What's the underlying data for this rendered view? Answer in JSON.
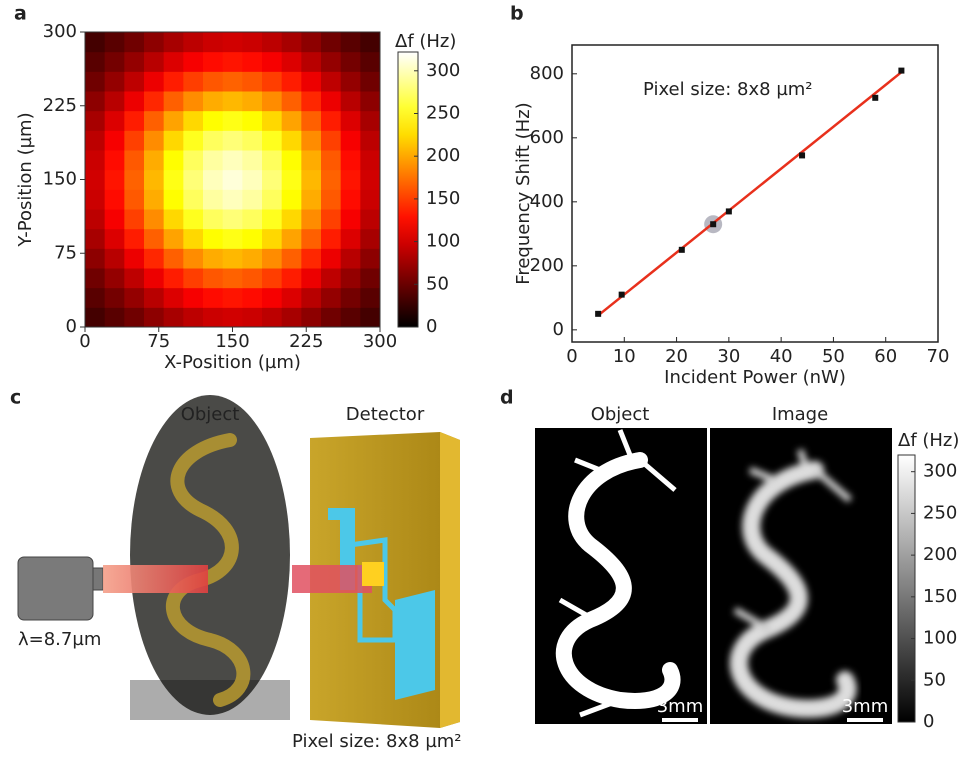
{
  "chart_data": [
    {
      "type": "heatmap",
      "xlabel": "X-Position (µm)",
      "ylabel": "Y-Position (µm)",
      "xlim": [
        0,
        300
      ],
      "ylim": [
        0,
        300
      ],
      "xticks": [
        0,
        75,
        150,
        225,
        300
      ],
      "yticks": [
        0,
        75,
        150,
        225,
        300
      ],
      "colormap": "hot",
      "z": [
        [
          32,
          42,
          53,
          67,
          79,
          89,
          96,
          99,
          96,
          89,
          79,
          67,
          53,
          42,
          32
        ],
        [
          42,
          55,
          70,
          87,
          104,
          117,
          126,
          130,
          126,
          117,
          104,
          87,
          70,
          55,
          42
        ],
        [
          53,
          70,
          90,
          112,
          134,
          150,
          162,
          167,
          162,
          150,
          134,
          112,
          90,
          70,
          53
        ],
        [
          67,
          87,
          112,
          139,
          166,
          187,
          202,
          208,
          202,
          187,
          166,
          139,
          112,
          87,
          67
        ],
        [
          79,
          104,
          134,
          166,
          198,
          223,
          241,
          248,
          241,
          223,
          198,
          166,
          134,
          104,
          79
        ],
        [
          89,
          117,
          151,
          187,
          223,
          251,
          271,
          279,
          271,
          251,
          223,
          187,
          151,
          117,
          89
        ],
        [
          96,
          126,
          163,
          202,
          241,
          271,
          292,
          301,
          292,
          271,
          241,
          202,
          163,
          126,
          96
        ],
        [
          99,
          130,
          167,
          208,
          248,
          279,
          301,
          310,
          301,
          279,
          248,
          208,
          167,
          130,
          99
        ],
        [
          96,
          126,
          163,
          202,
          241,
          271,
          292,
          301,
          292,
          271,
          241,
          202,
          163,
          126,
          96
        ],
        [
          89,
          117,
          151,
          187,
          223,
          251,
          271,
          279,
          271,
          251,
          223,
          187,
          151,
          117,
          89
        ],
        [
          79,
          104,
          134,
          166,
          198,
          223,
          241,
          248,
          241,
          223,
          198,
          166,
          134,
          104,
          79
        ],
        [
          67,
          87,
          112,
          139,
          166,
          187,
          202,
          208,
          202,
          187,
          166,
          139,
          112,
          87,
          67
        ],
        [
          53,
          70,
          90,
          112,
          134,
          150,
          162,
          167,
          162,
          150,
          134,
          112,
          90,
          70,
          53
        ],
        [
          42,
          55,
          70,
          87,
          104,
          117,
          126,
          130,
          126,
          117,
          104,
          87,
          70,
          55,
          42
        ],
        [
          32,
          42,
          53,
          67,
          79,
          89,
          96,
          99,
          96,
          89,
          79,
          67,
          53,
          42,
          32
        ]
      ],
      "colorbar": {
        "label": "Δf (Hz)",
        "lim": [
          0,
          322
        ],
        "ticks": [
          0,
          50,
          100,
          150,
          200,
          250,
          300
        ]
      }
    },
    {
      "type": "scatter",
      "xlabel": "Incident Power (nW)",
      "ylabel": "Frequency Shift (Hz)",
      "annotation": "Pixel size: 8x8 µm²",
      "xlim": [
        0,
        70
      ],
      "ylim": [
        -38,
        890
      ],
      "xticks": [
        0,
        10,
        20,
        30,
        40,
        50,
        60,
        70
      ],
      "yticks": [
        0,
        200,
        400,
        600,
        800
      ],
      "series": [
        {
          "style": "markers",
          "color": "#111111",
          "x": [
            5,
            9.5,
            21,
            27,
            30,
            44,
            58,
            63
          ],
          "y": [
            50,
            110,
            250,
            330,
            370,
            545,
            725,
            810
          ]
        },
        {
          "style": "line",
          "color": "#e8301c",
          "x": [
            5,
            63
          ],
          "y": [
            45,
            805
          ]
        }
      ],
      "highlight_index": 3
    }
  ],
  "panel_labels": [
    "a",
    "b",
    "c",
    "d"
  ],
  "panel_c": {
    "object_label": "Object",
    "detector_label": "Detector",
    "wavelength": "λ=8.7µm",
    "pixel_size": "Pixel size: 8x8 µm²"
  },
  "panel_d": {
    "object_label": "Object",
    "image_label": "Image",
    "scale_bar": "3mm",
    "colorbar": {
      "label": "Δf (Hz)",
      "lim": [
        0,
        320
      ],
      "ticks": [
        0,
        50,
        100,
        150,
        200,
        250,
        300
      ]
    }
  }
}
